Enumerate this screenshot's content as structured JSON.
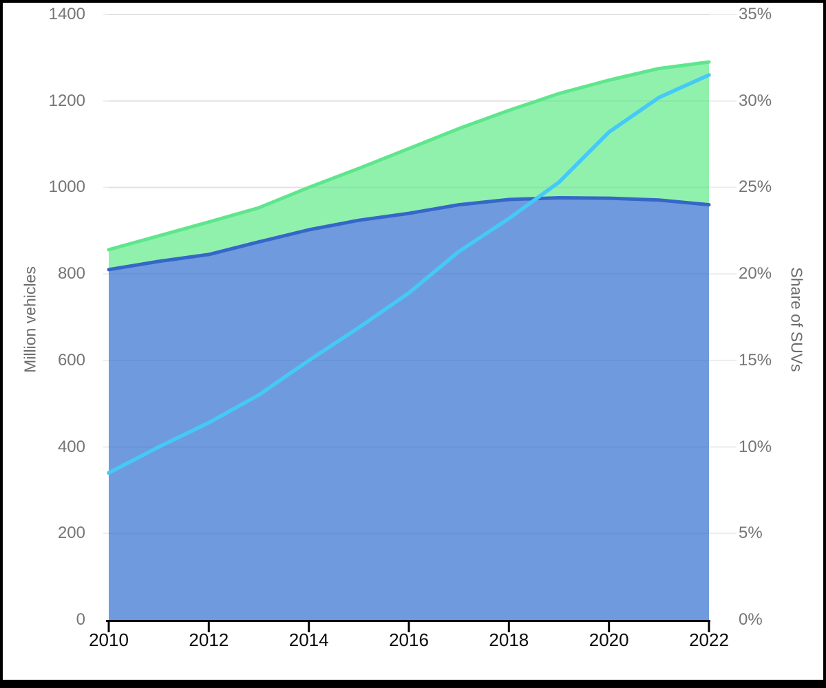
{
  "frame": {
    "border_color": "#000000",
    "background": "#ffffff"
  },
  "axes": {
    "left": {
      "title": "Million vehicles"
    },
    "right": {
      "title": "Share of SUVs"
    }
  },
  "colors": {
    "green_fill": "#90F1AD",
    "green_stroke": "#5FE68C",
    "blue_fill": "#6F9ADE",
    "blue_stroke": "#3566C8",
    "cyan_stroke": "#45C9F6",
    "grid_base": "#ededed",
    "grid_overlay": "rgba(0,0,0,0.045)",
    "axis_line": "#000000",
    "y_tick_color": "#757575",
    "x_tick_color": "#0a0a0a",
    "axis_title_color": "#6b6b6b"
  },
  "chart_data": {
    "type": "area",
    "title": "",
    "legend": "none",
    "grid": true,
    "x": [
      2010,
      2011,
      2012,
      2013,
      2014,
      2015,
      2016,
      2017,
      2018,
      2019,
      2020,
      2021,
      2022
    ],
    "x_tick_years": [
      2010,
      2012,
      2014,
      2016,
      2018,
      2020,
      2022
    ],
    "x_tick_labels": [
      "2010",
      "2012",
      "2014",
      "2016",
      "2018",
      "2020",
      "2022"
    ],
    "left_axis": {
      "label": "Million vehicles",
      "min": 0,
      "max": 1400,
      "tick_step": 200,
      "tick_values": [
        0,
        200,
        400,
        600,
        800,
        1000,
        1200,
        1400
      ],
      "tick_labels": [
        "0",
        "200",
        "400",
        "600",
        "800",
        "1000",
        "1200",
        "1400"
      ]
    },
    "right_axis": {
      "label": "Share of SUVs",
      "min": 0,
      "max": 35,
      "tick_step": 5,
      "tick_values": [
        0,
        5,
        10,
        15,
        20,
        25,
        30,
        35
      ],
      "tick_labels": [
        "0%",
        "5%",
        "10%",
        "15%",
        "20%",
        "25%",
        "30%",
        "35%"
      ]
    },
    "series": [
      {
        "name": "green-area-total-vehicles",
        "type": "area",
        "axis": "left",
        "values": [
          856,
          888,
          920,
          953,
          1000,
          1044,
          1090,
          1136,
          1178,
          1217,
          1248,
          1275,
          1290
        ],
        "fill": "#90F1AD",
        "stroke": "#5FE68C"
      },
      {
        "name": "blue-area-vehicles",
        "type": "area",
        "axis": "left",
        "values": [
          810,
          829,
          845,
          874,
          902,
          924,
          940,
          960,
          972,
          976,
          975,
          971,
          960
        ],
        "fill": "#6F9ADE",
        "stroke": "#3566C8"
      },
      {
        "name": "cyan-line-suv-share",
        "type": "line",
        "axis": "right",
        "values": [
          8.5,
          10,
          11.4,
          13,
          15,
          16.9,
          18.9,
          21.3,
          23.2,
          25.3,
          28.2,
          30.2,
          31.5
        ],
        "stroke": "#45C9F6"
      }
    ]
  }
}
